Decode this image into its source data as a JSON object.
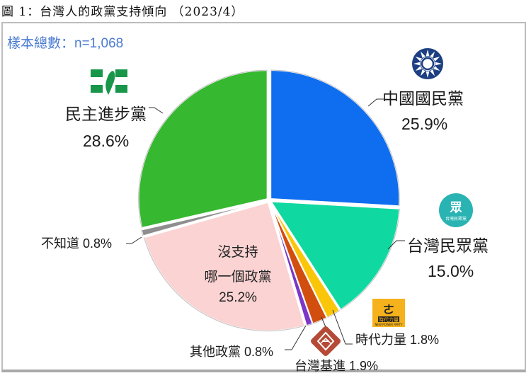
{
  "figure_title": "圖 1：台灣人的政黨支持傾向 （2023/4）",
  "sample_label": "樣本總數：n=1,068",
  "chart_data": {
    "type": "pie",
    "title": "台灣人的政黨支持傾向 (2023/4)",
    "sample_size": "n=1,068",
    "start_angle": "12 o'clock, clockwise",
    "slices": [
      {
        "label": "中國國民黨",
        "value": 25.9,
        "color": "#0f6ef0"
      },
      {
        "label": "台灣民眾黨",
        "value": 15.0,
        "color": "#0fd9a0"
      },
      {
        "label": "時代力量",
        "value": 1.8,
        "color": "#fbc60a"
      },
      {
        "label": "台灣基進",
        "value": 1.9,
        "color": "#d24e0f"
      },
      {
        "label": "其他政黨",
        "value": 0.8,
        "color": "#7a37c8"
      },
      {
        "label": "沒支持哪一個政黨",
        "value": 25.2,
        "color": "#fbd3d3"
      },
      {
        "label": "不知道",
        "value": 0.8,
        "color": "#8e8e8e"
      },
      {
        "label": "民主進步黨",
        "value": 28.6,
        "color": "#36b830"
      }
    ]
  },
  "labels": {
    "kmt_name": "中國國民黨",
    "kmt_pct": "25.9%",
    "dpp_name": "民主進步黨",
    "dpp_pct": "28.6%",
    "tpp_name": "台灣民眾黨",
    "tpp_pct": "15.0%",
    "npp": "時代力量 1.8%",
    "tsp": "台灣基進 1.9%",
    "other": "其他政黨 0.8%",
    "unknown": "不知道 0.8%",
    "none_line1": "沒支持",
    "none_line2": "哪一個政黨",
    "none_pct": "25.2%"
  },
  "logos": {
    "kmt": "kmt-sun-icon",
    "dpp": "dpp-taiwan-icon",
    "tpp": "tpp-circle-icon",
    "tpp_text": "眾",
    "npp": "npp-square-icon",
    "npp_text": "時代力量",
    "tsp": "tsp-diamond-icon"
  }
}
